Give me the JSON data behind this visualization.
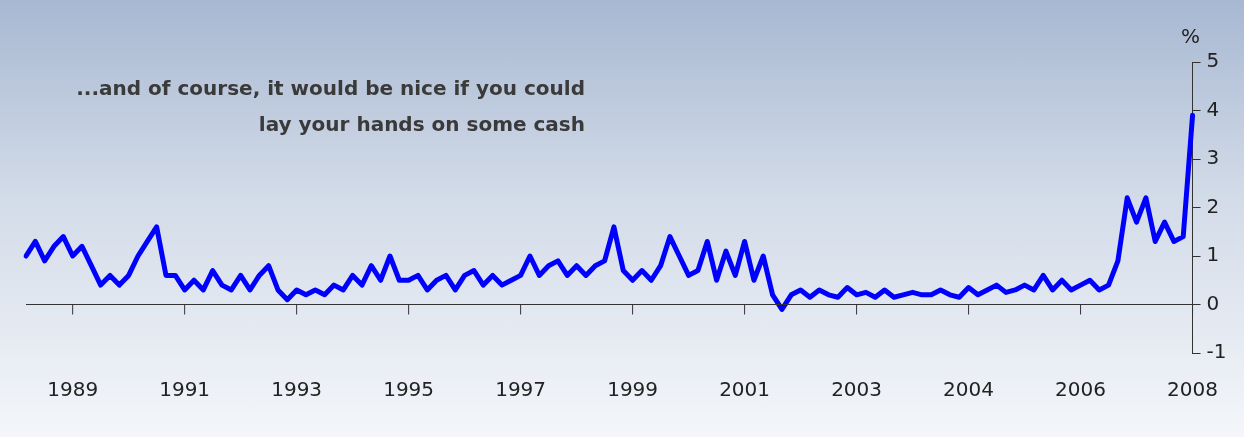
{
  "chart_data": {
    "type": "line",
    "ylabel": "%",
    "annotations": [
      "...and of course, it would be nice if you could\nlay your hands on some cash"
    ],
    "categories": [
      null,
      null,
      null,
      null,
      null,
      "1989",
      null,
      null,
      null,
      null,
      null,
      null,
      null,
      null,
      null,
      null,
      null,
      "1991",
      null,
      null,
      null,
      null,
      null,
      null,
      null,
      null,
      null,
      null,
      null,
      "1993",
      null,
      null,
      null,
      null,
      null,
      null,
      null,
      null,
      null,
      null,
      null,
      "1995",
      null,
      null,
      null,
      null,
      null,
      null,
      null,
      null,
      null,
      null,
      null,
      "1997",
      null,
      null,
      null,
      null,
      null,
      null,
      null,
      null,
      null,
      null,
      null,
      "1999",
      null,
      null,
      null,
      null,
      null,
      null,
      null,
      null,
      null,
      null,
      null,
      "2001",
      null,
      null,
      null,
      null,
      null,
      null,
      null,
      null,
      null,
      null,
      null,
      "2003",
      null,
      null,
      null,
      null,
      null,
      null,
      null,
      null,
      null,
      null,
      null,
      "2004",
      null,
      null,
      null,
      null,
      null,
      null,
      null,
      null,
      null,
      null,
      null,
      "2006",
      null,
      null,
      null,
      null,
      null,
      null,
      null,
      null,
      null,
      null,
      null,
      "2008"
    ],
    "ylim": [
      -1,
      5
    ],
    "yticks": [
      -1,
      0,
      1,
      2,
      3,
      4,
      5
    ],
    "ref_lines": [
      {
        "axis": "y",
        "value": 0
      }
    ],
    "grid": false,
    "legend": false,
    "marker": "none",
    "line_style": "solid",
    "series": [
      {
        "color": "#0000ff",
        "values": [
          1.0,
          1.3,
          0.9,
          1.2,
          1.4,
          1.0,
          1.2,
          0.8,
          0.4,
          0.6,
          0.4,
          0.6,
          1.0,
          1.3,
          1.6,
          0.6,
          0.6,
          0.3,
          0.5,
          0.3,
          0.7,
          0.4,
          0.3,
          0.6,
          0.3,
          0.6,
          0.8,
          0.3,
          0.1,
          0.3,
          0.2,
          0.3,
          0.2,
          0.4,
          0.3,
          0.6,
          0.4,
          0.8,
          0.5,
          1.0,
          0.5,
          0.5,
          0.6,
          0.3,
          0.5,
          0.6,
          0.3,
          0.6,
          0.7,
          0.4,
          0.6,
          0.4,
          0.5,
          0.6,
          1.0,
          0.6,
          0.8,
          0.9,
          0.6,
          0.8,
          0.6,
          0.8,
          0.9,
          1.6,
          0.7,
          0.5,
          0.7,
          0.5,
          0.8,
          1.4,
          1.0,
          0.6,
          0.7,
          1.3,
          0.5,
          1.1,
          0.6,
          1.3,
          0.5,
          1.0,
          0.2,
          -0.1,
          0.2,
          0.3,
          0.15,
          0.3,
          0.2,
          0.15,
          0.35,
          0.2,
          0.25,
          0.15,
          0.3,
          0.15,
          0.2,
          0.25,
          0.2,
          0.2,
          0.3,
          0.2,
          0.15,
          0.35,
          0.2,
          0.3,
          0.4,
          0.25,
          0.3,
          0.4,
          0.3,
          0.6,
          0.3,
          0.5,
          0.3,
          0.4,
          0.5,
          0.3,
          0.4,
          0.9,
          2.2,
          1.7,
          2.2,
          1.3,
          1.7,
          1.3,
          1.4,
          3.9
        ]
      }
    ]
  }
}
